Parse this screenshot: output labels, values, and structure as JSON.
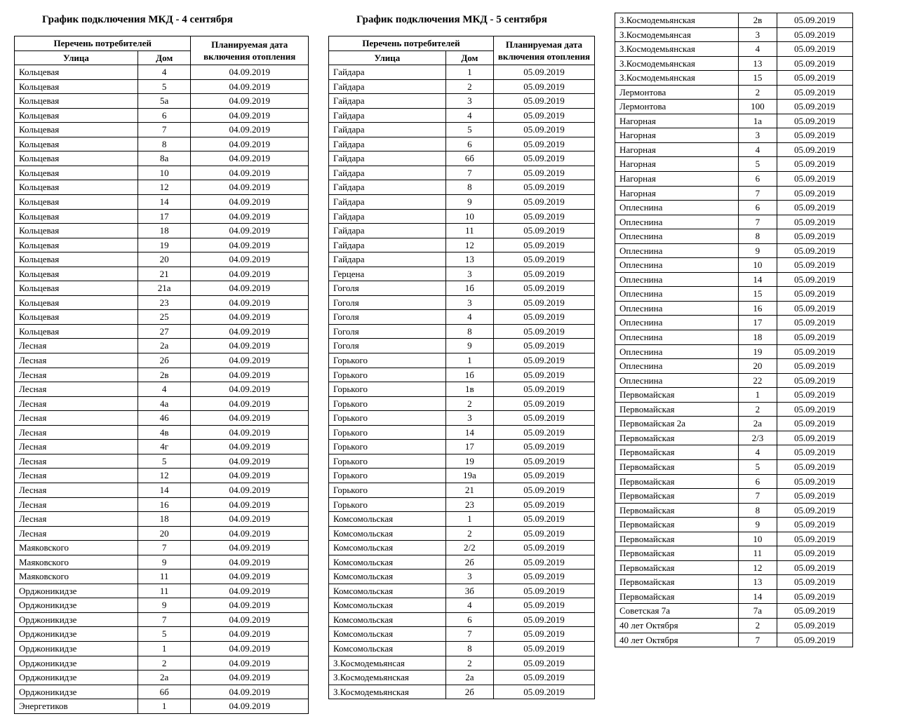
{
  "tables": {
    "t1": {
      "title": "График подключения МКД - 4 сентября",
      "headers": {
        "consumers": "Перечень потребителей",
        "street": "Улица",
        "house": "Дом",
        "date": "Планируемая дата включения отопления"
      },
      "rows": [
        [
          "Кольцевая",
          "4",
          "04.09.2019"
        ],
        [
          "Кольцевая",
          "5",
          "04.09.2019"
        ],
        [
          "Кольцевая",
          "5а",
          "04.09.2019"
        ],
        [
          "Кольцевая",
          "6",
          "04.09.2019"
        ],
        [
          "Кольцевая",
          "7",
          "04.09.2019"
        ],
        [
          "Кольцевая",
          "8",
          "04.09.2019"
        ],
        [
          "Кольцевая",
          "8а",
          "04.09.2019"
        ],
        [
          "Кольцевая",
          "10",
          "04.09.2019"
        ],
        [
          "Кольцевая",
          "12",
          "04.09.2019"
        ],
        [
          "Кольцевая",
          "14",
          "04.09.2019"
        ],
        [
          "Кольцевая",
          "17",
          "04.09.2019"
        ],
        [
          "Кольцевая",
          "18",
          "04.09.2019"
        ],
        [
          "Кольцевая",
          "19",
          "04.09.2019"
        ],
        [
          "Кольцевая",
          "20",
          "04.09.2019"
        ],
        [
          "Кольцевая",
          "21",
          "04.09.2019"
        ],
        [
          "Кольцевая",
          "21а",
          "04.09.2019"
        ],
        [
          "Кольцевая",
          "23",
          "04.09.2019"
        ],
        [
          "Кольцевая",
          "25",
          "04.09.2019"
        ],
        [
          "Кольцевая",
          "27",
          "04.09.2019"
        ],
        [
          "Лесная",
          "2а",
          "04.09.2019"
        ],
        [
          "Лесная",
          "2б",
          "04.09.2019"
        ],
        [
          "Лесная",
          "2в",
          "04.09.2019"
        ],
        [
          "Лесная",
          "4",
          "04.09.2019"
        ],
        [
          "Лесная",
          "4а",
          "04.09.2019"
        ],
        [
          "Лесная",
          "46",
          "04.09.2019"
        ],
        [
          "Лесная",
          "4в",
          "04.09.2019"
        ],
        [
          "Лесная",
          "4г",
          "04.09.2019"
        ],
        [
          "Лесная",
          "5",
          "04.09.2019"
        ],
        [
          "Лесная",
          "12",
          "04.09.2019"
        ],
        [
          "Лесная",
          "14",
          "04.09.2019"
        ],
        [
          "Лесная",
          "16",
          "04.09.2019"
        ],
        [
          "Лесная",
          "18",
          "04.09.2019"
        ],
        [
          "Лесная",
          "20",
          "04.09.2019"
        ],
        [
          "Маяковского",
          "7",
          "04.09.2019"
        ],
        [
          "Маяковского",
          "9",
          "04.09.2019"
        ],
        [
          "Маяковского",
          "11",
          "04.09.2019"
        ],
        [
          "Орджоникидзе",
          "11",
          "04.09.2019"
        ],
        [
          "Орджоникидзе",
          "9",
          "04.09.2019"
        ],
        [
          "Орджоникидзе",
          "7",
          "04.09.2019"
        ],
        [
          "Орджоникидзе",
          "5",
          "04.09.2019"
        ],
        [
          "Орджоникидзе",
          "1",
          "04.09.2019"
        ],
        [
          "Орджоникидзе",
          "2",
          "04.09.2019"
        ],
        [
          "Орджоникидзе",
          "2а",
          "04.09.2019"
        ],
        [
          "Орджоникидзе",
          "6б",
          "04.09.2019"
        ],
        [
          "Энергетиков",
          "1",
          "04.09.2019"
        ]
      ]
    },
    "t2": {
      "title": "График подключения МКД - 5 сентября",
      "headers": {
        "consumers": "Перечень потребителей",
        "street": "Улица",
        "house": "Дом",
        "date": "Планируемая дата включения отопления"
      },
      "rows": [
        [
          "Гайдара",
          "1",
          "05.09.2019"
        ],
        [
          "Гайдара",
          "2",
          "05.09.2019"
        ],
        [
          "Гайдара",
          "3",
          "05.09.2019"
        ],
        [
          "Гайдара",
          "4",
          "05.09.2019"
        ],
        [
          "Гайдара",
          "5",
          "05.09.2019"
        ],
        [
          "Гайдара",
          "6",
          "05.09.2019"
        ],
        [
          "Гайдара",
          "6б",
          "05.09.2019"
        ],
        [
          "Гайдара",
          "7",
          "05.09.2019"
        ],
        [
          "Гайдара",
          "8",
          "05.09.2019"
        ],
        [
          "Гайдара",
          "9",
          "05.09.2019"
        ],
        [
          "Гайдара",
          "10",
          "05.09.2019"
        ],
        [
          "Гайдара",
          "11",
          "05.09.2019"
        ],
        [
          "Гайдара",
          "12",
          "05.09.2019"
        ],
        [
          "Гайдара",
          "13",
          "05.09.2019"
        ],
        [
          "Герцена",
          "3",
          "05.09.2019"
        ],
        [
          "Гоголя",
          "1б",
          "05.09.2019"
        ],
        [
          "Гоголя",
          "3",
          "05.09.2019"
        ],
        [
          "Гоголя",
          "4",
          "05.09.2019"
        ],
        [
          "Гоголя",
          "8",
          "05.09.2019"
        ],
        [
          "Гоголя",
          "9",
          "05.09.2019"
        ],
        [
          "Горького",
          "1",
          "05.09.2019"
        ],
        [
          "Горького",
          "1б",
          "05.09.2019"
        ],
        [
          "Горького",
          "1в",
          "05.09.2019"
        ],
        [
          "Горького",
          "2",
          "05.09.2019"
        ],
        [
          "Горького",
          "3",
          "05.09.2019"
        ],
        [
          "Горького",
          "14",
          "05.09.2019"
        ],
        [
          "Горького",
          "17",
          "05.09.2019"
        ],
        [
          "Горького",
          "19",
          "05.09.2019"
        ],
        [
          "Горького",
          "19а",
          "05.09.2019"
        ],
        [
          "Горького",
          "21",
          "05.09.2019"
        ],
        [
          "Горького",
          "23",
          "05.09.2019"
        ],
        [
          "Комсомольская",
          "1",
          "05.09.2019"
        ],
        [
          "Комсомольская",
          "2",
          "05.09.2019"
        ],
        [
          "Комсомольская",
          "2/2",
          "05.09.2019"
        ],
        [
          "Комсомольская",
          "2б",
          "05.09.2019"
        ],
        [
          "Комсомольская",
          "3",
          "05.09.2019"
        ],
        [
          "Комсомольская",
          "3б",
          "05.09.2019"
        ],
        [
          "Комсомольская",
          "4",
          "05.09.2019"
        ],
        [
          "Комсомольская",
          "6",
          "05.09.2019"
        ],
        [
          "Комсомольская",
          "7",
          "05.09.2019"
        ],
        [
          "Комсомольская",
          "8",
          "05.09.2019"
        ],
        [
          "З.Космодемьянсая",
          "2",
          "05.09.2019"
        ],
        [
          "З.Космодемьянская",
          "2а",
          "05.09.2019"
        ],
        [
          "З.Космодемьянская",
          "2б",
          "05.09.2019"
        ]
      ]
    },
    "t3": {
      "rows": [
        [
          "З.Космодемьянская",
          "2в",
          "05.09.2019"
        ],
        [
          "З.Космодемьянсая",
          "3",
          "05.09.2019"
        ],
        [
          "З.Космодемьянская",
          "4",
          "05.09.2019"
        ],
        [
          "З.Космодемьянская",
          "13",
          "05.09.2019"
        ],
        [
          "З.Космодемьянская",
          "15",
          "05.09.2019"
        ],
        [
          "Лермонтова",
          "2",
          "05.09.2019"
        ],
        [
          "Лермонтова",
          "100",
          "05.09.2019"
        ],
        [
          "Нагорная",
          "1а",
          "05.09.2019"
        ],
        [
          "Нагорная",
          "3",
          "05.09.2019"
        ],
        [
          "Нагорная",
          "4",
          "05.09.2019"
        ],
        [
          "Нагорная",
          "5",
          "05.09.2019"
        ],
        [
          "Нагорная",
          "6",
          "05.09.2019"
        ],
        [
          "Нагорная",
          "7",
          "05.09.2019"
        ],
        [
          "Оплеснина",
          "6",
          "05.09.2019"
        ],
        [
          "Оплеснина",
          "7",
          "05.09.2019"
        ],
        [
          "Оплеснина",
          "8",
          "05.09.2019"
        ],
        [
          "Оплеснина",
          "9",
          "05.09.2019"
        ],
        [
          "Оплеснина",
          "10",
          "05.09.2019"
        ],
        [
          "Оплеснина",
          "14",
          "05.09.2019"
        ],
        [
          "Оплеснина",
          "15",
          "05.09.2019"
        ],
        [
          "Оплеснина",
          "16",
          "05.09.2019"
        ],
        [
          "Оплеснина",
          "17",
          "05.09.2019"
        ],
        [
          "Оплеснина",
          "18",
          "05.09.2019"
        ],
        [
          "Оплеснина",
          "19",
          "05.09.2019"
        ],
        [
          "Оплеснина",
          "20",
          "05.09.2019"
        ],
        [
          "Оплеснина",
          "22",
          "05.09.2019"
        ],
        [
          "Первомайская",
          "1",
          "05.09.2019"
        ],
        [
          "Первомайская",
          "2",
          "05.09.2019"
        ],
        [
          "Первомайская 2а",
          "2а",
          "05.09.2019"
        ],
        [
          "Первомайская",
          "2/3",
          "05.09.2019"
        ],
        [
          "Первомайская",
          "4",
          "05.09.2019"
        ],
        [
          "Первомайская",
          "5",
          "05.09.2019"
        ],
        [
          "Первомайская",
          "6",
          "05.09.2019"
        ],
        [
          "Первомайская",
          "7",
          "05.09.2019"
        ],
        [
          "Первомайская",
          "8",
          "05.09.2019"
        ],
        [
          "Первомайская",
          "9",
          "05.09.2019"
        ],
        [
          "Первомайская",
          "10",
          "05.09.2019"
        ],
        [
          "Первомайская",
          "11",
          "05.09.2019"
        ],
        [
          "Первомайская",
          "12",
          "05.09.2019"
        ],
        [
          "Первомайская",
          "13",
          "05.09.2019"
        ],
        [
          "Первомайская",
          "14",
          "05.09.2019"
        ],
        [
          "Советская 7а",
          "7а",
          "05.09.2019"
        ],
        [
          "40 лет Октября",
          "2",
          "05.09.2019"
        ],
        [
          "40 лет Октября",
          "7",
          "05.09.2019"
        ]
      ]
    }
  }
}
